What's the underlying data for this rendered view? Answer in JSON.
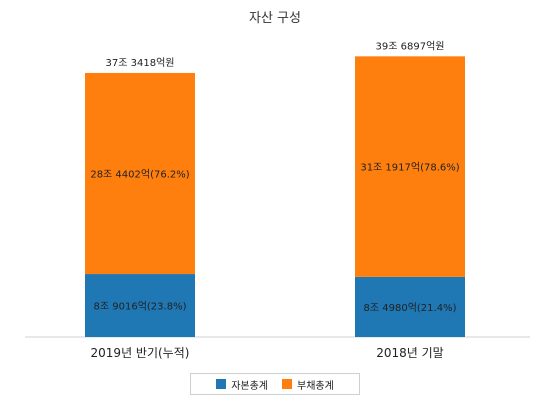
{
  "chart_data": {
    "type": "bar",
    "stacked": true,
    "title": "자산 구성",
    "categories": [
      "2019년 반기(누적)",
      "2018년 기말"
    ],
    "series": [
      {
        "name": "자본총계",
        "color": "#1f77b4",
        "values": [
          8.9016,
          8.498
        ],
        "labels": [
          "8조 9016억(23.8%)",
          "8조 4980억(21.4%)"
        ]
      },
      {
        "name": "부채총계",
        "color": "#ff7f0e",
        "values": [
          28.4402,
          31.1917
        ],
        "labels": [
          "28조 4402억(76.2%)",
          "31조 1917억(78.6%)"
        ]
      }
    ],
    "totals": [
      37.3418,
      39.6897
    ],
    "total_labels": [
      "37조 3418억원",
      "39조 6897억원"
    ],
    "ylim": [
      0,
      42
    ],
    "grid": false,
    "legend_position": "bottom"
  }
}
